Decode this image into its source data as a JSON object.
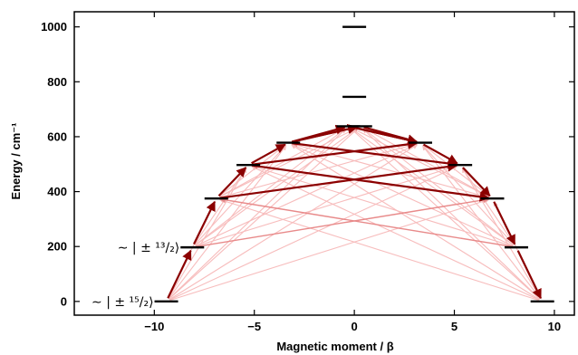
{
  "chart_data": {
    "type": "scatter",
    "xlabel": "Magnetic moment / β",
    "ylabel": "Energy / cm⁻¹",
    "xlim": [
      -14,
      11
    ],
    "ylim": [
      -50,
      1055
    ],
    "xticks": [
      -10,
      -5,
      0,
      5,
      10
    ],
    "xtick_labels": [
      "−10",
      "−5",
      "0",
      "5",
      "10"
    ],
    "yticks": [
      0,
      200,
      400,
      600,
      800,
      1000
    ],
    "ytick_labels": [
      "0",
      "200",
      "400",
      "600",
      "800",
      "1000"
    ],
    "levels": [
      {
        "moment": -9.4,
        "energy": 0
      },
      {
        "moment": 9.4,
        "energy": 0
      },
      {
        "moment": -8.1,
        "energy": 197
      },
      {
        "moment": 8.1,
        "energy": 197
      },
      {
        "moment": -6.9,
        "energy": 375
      },
      {
        "moment": 6.9,
        "energy": 375
      },
      {
        "moment": -5.3,
        "energy": 497
      },
      {
        "moment": 5.3,
        "energy": 497
      },
      {
        "moment": -3.3,
        "energy": 578
      },
      {
        "moment": 3.3,
        "energy": 578
      },
      {
        "moment": -0.3,
        "energy": 638
      },
      {
        "moment": 0.3,
        "energy": 638
      },
      {
        "moment": 0,
        "energy": 745
      },
      {
        "moment": 0,
        "energy": 1000
      }
    ],
    "state_labels": [
      {
        "text": "∼ | ± ¹⁵/₂⟩",
        "energy": 0
      },
      {
        "text": "∼ | ± ¹³/₂⟩",
        "energy": 197
      }
    ],
    "transition_colors": {
      "strong": "#8b0000",
      "medium": "#e05050",
      "weak": "#f7b9b9"
    }
  }
}
